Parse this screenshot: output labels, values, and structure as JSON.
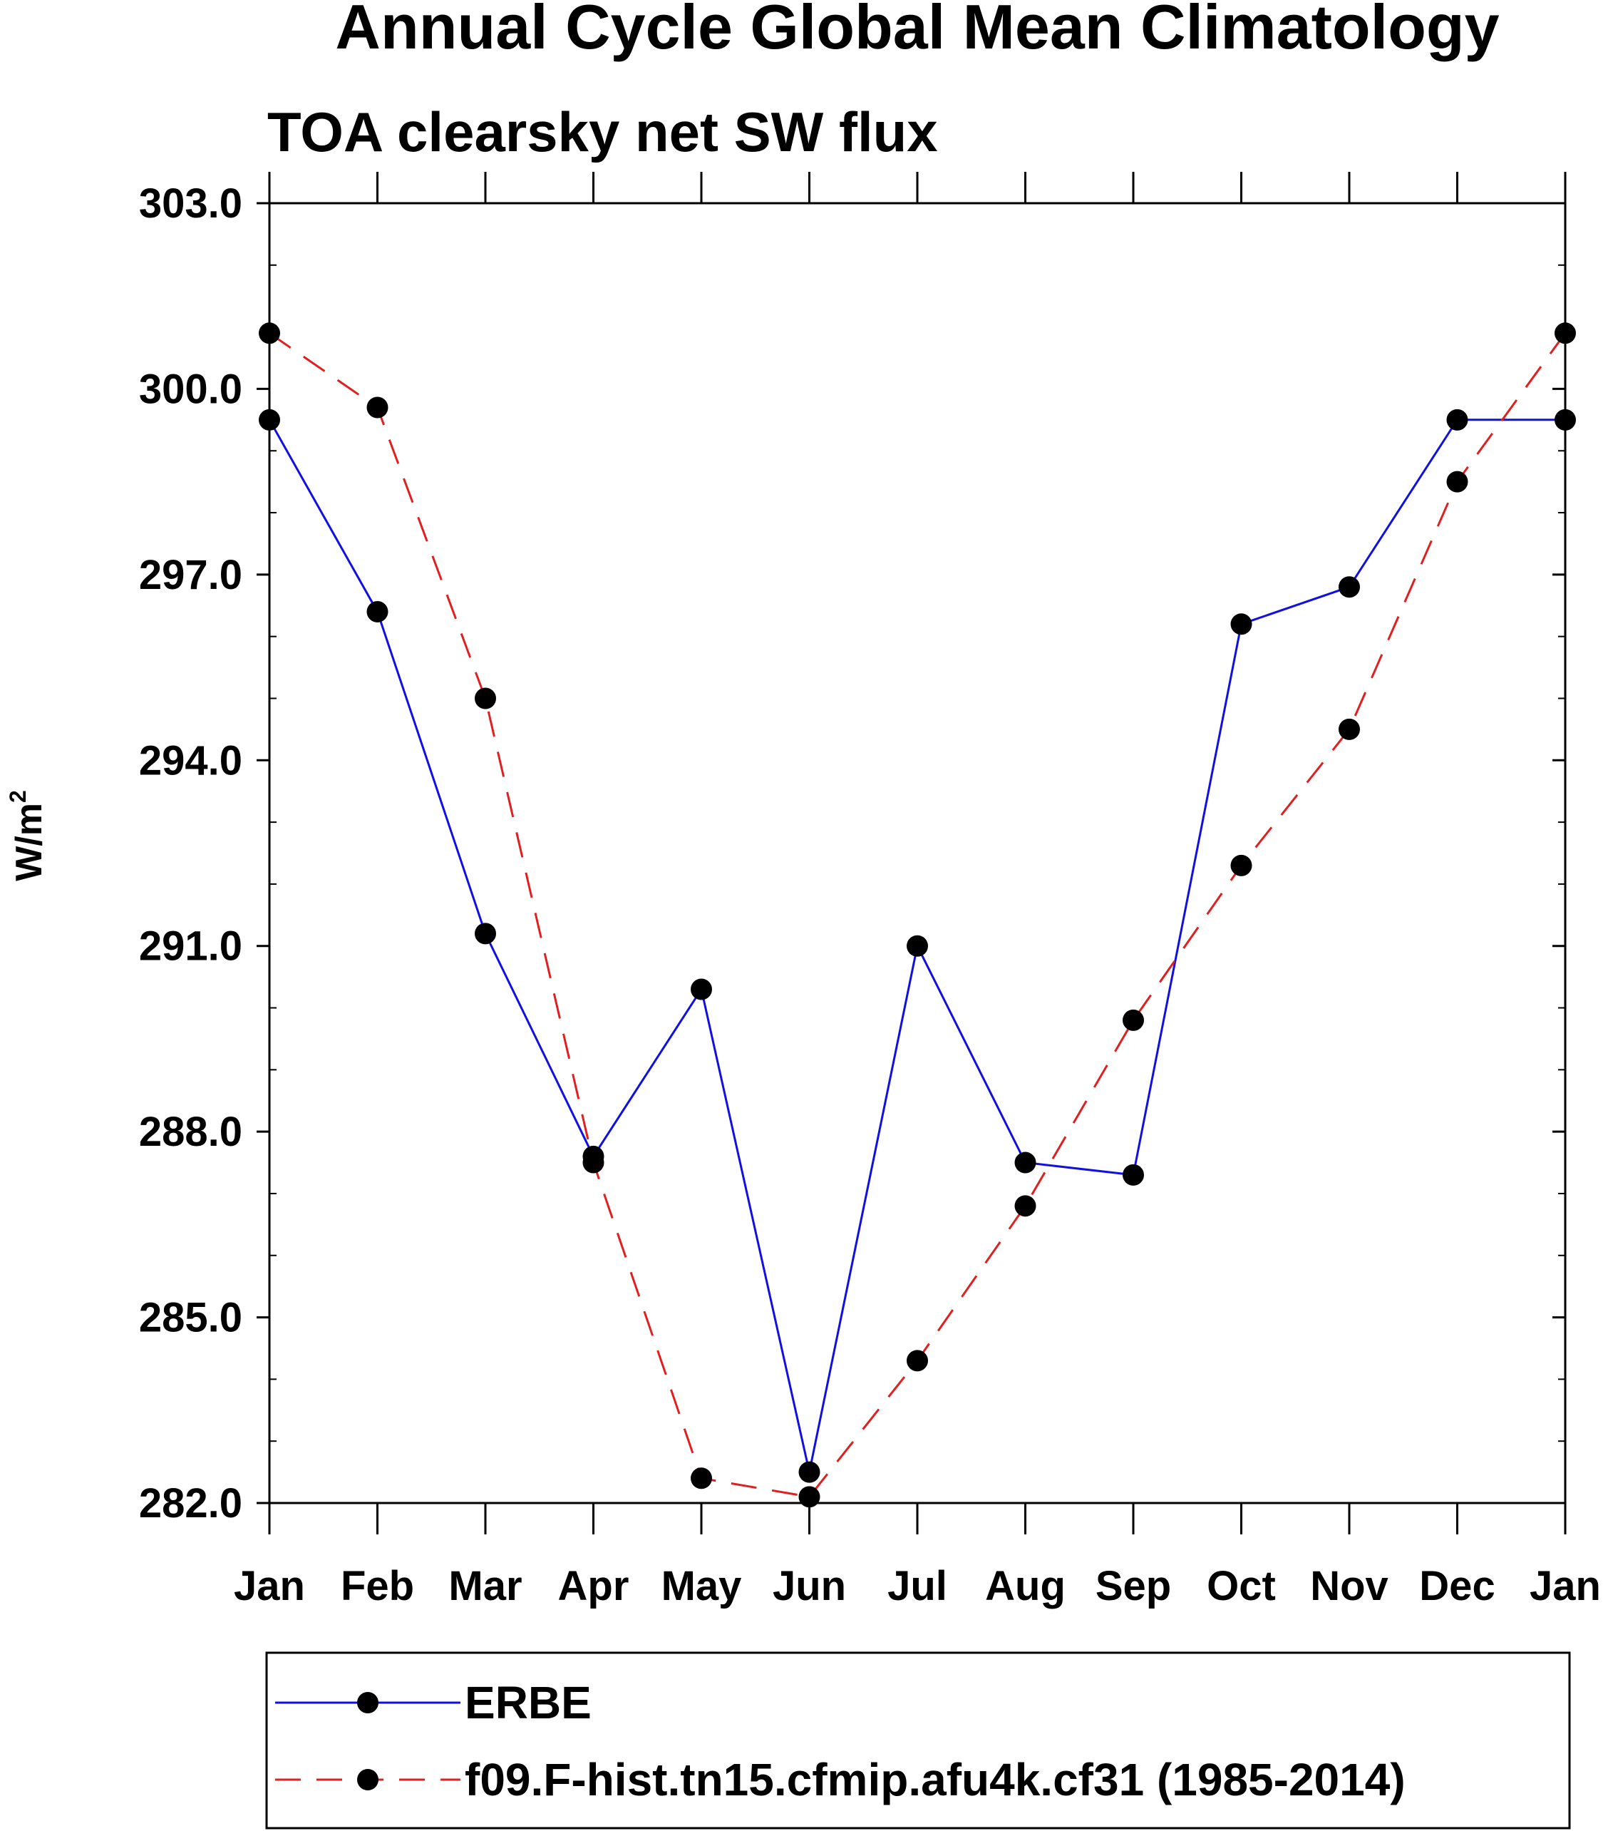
{
  "chart_data": {
    "type": "line",
    "title": "Annual Cycle Global Mean Climatology",
    "subtitle": "TOA clearsky net SW flux",
    "xlabel": "",
    "ylabel": "W/m",
    "ylabel_superscript": "2",
    "categories": [
      "Jan",
      "Feb",
      "Mar",
      "Apr",
      "May",
      "Jun",
      "Jul",
      "Aug",
      "Sep",
      "Oct",
      "Nov",
      "Dec",
      "Jan"
    ],
    "ylim": [
      282.0,
      303.0
    ],
    "yticks": [
      "282.0",
      "285.0",
      "288.0",
      "291.0",
      "294.0",
      "297.0",
      "300.0",
      "303.0"
    ],
    "yminor_step": 1.0,
    "grid": false,
    "legend_position": "bottom",
    "series": [
      {
        "name": "ERBE",
        "color": "#1010e0",
        "style": "solid",
        "marker": "circle",
        "values": [
          299.5,
          296.4,
          291.2,
          287.6,
          290.3,
          282.5,
          291.0,
          287.5,
          287.3,
          296.2,
          296.8,
          299.5,
          299.5
        ]
      },
      {
        "name": "f09.F-hist.tn15.cfmip.afu4k.cf31 (1985-2014)",
        "color": "#e02020",
        "style": "dashed",
        "marker": "circle",
        "values": [
          300.9,
          299.7,
          295.0,
          287.5,
          282.4,
          282.1,
          284.3,
          286.8,
          289.8,
          292.3,
          294.5,
          298.5,
          300.9
        ]
      }
    ]
  }
}
